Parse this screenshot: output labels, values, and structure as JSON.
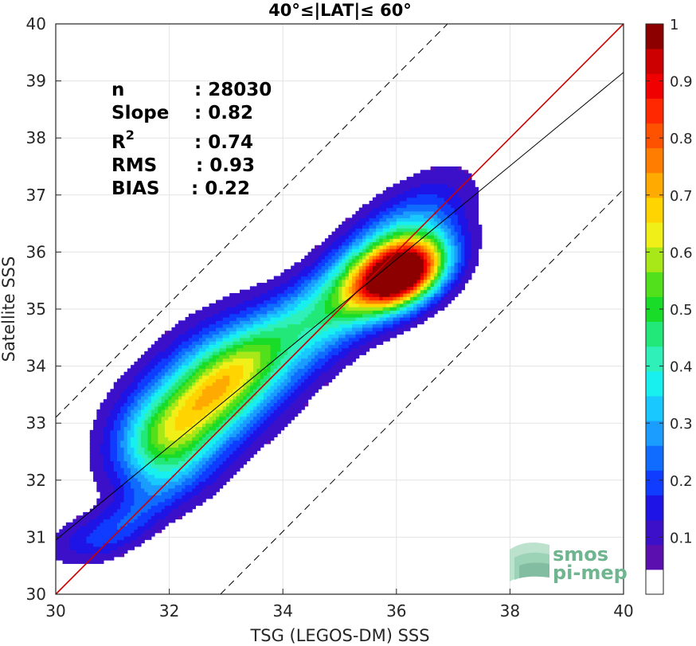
{
  "chart_data": {
    "type": "heatmap",
    "title": "40°≤|LAT|≤ 60°",
    "xlabel": "TSG (LEGOS-DM) SSS",
    "ylabel": "Satellite SSS",
    "xlim": [
      30,
      40
    ],
    "ylim": [
      30,
      40
    ],
    "x_ticks": [
      "30",
      "32",
      "34",
      "36",
      "38",
      "40"
    ],
    "y_ticks": [
      "30",
      "31",
      "32",
      "33",
      "34",
      "35",
      "36",
      "37",
      "38",
      "39",
      "40"
    ],
    "grid": true,
    "colorbar": {
      "min": 0,
      "max": 1,
      "ticks": [
        "0.1",
        "0.2",
        "0.3",
        "0.4",
        "0.5",
        "0.6",
        "0.7",
        "0.8",
        "0.9",
        "1"
      ],
      "levels": [
        "#ffffff",
        "#5b0fae",
        "#3b10c8",
        "#1f14e6",
        "#0f3cff",
        "#0f6cff",
        "#1b9cff",
        "#18c8ff",
        "#18f0f0",
        "#2ff0b8",
        "#22e87a",
        "#18dc28",
        "#52e01c",
        "#a8e818",
        "#f0f018",
        "#ffd400",
        "#ffaa00",
        "#ff7d00",
        "#ff5200",
        "#ff2800",
        "#f00000",
        "#cc0000",
        "#8c0000"
      ]
    },
    "reference_lines": [
      {
        "name": "1:1",
        "color": "#cc0000",
        "slope": 1,
        "intercept": 0,
        "style": "solid"
      },
      {
        "name": "regression",
        "color": "#000000",
        "slope": 0.82,
        "intercept": 6.35,
        "style": "solid"
      },
      {
        "name": "upper bound",
        "color": "#000000",
        "slope": 1,
        "intercept": 3.1,
        "style": "dashed"
      },
      {
        "name": "lower bound",
        "color": "#000000",
        "slope": 1,
        "intercept": -2.9,
        "style": "dashed"
      }
    ],
    "density_blobs": [
      {
        "x": 32.8,
        "y": 33.6,
        "sx": 0.75,
        "sy": 0.75,
        "amp": 0.55,
        "rot": 0.7
      },
      {
        "x": 31.9,
        "y": 32.6,
        "sx": 0.45,
        "sy": 0.75,
        "amp": 0.28,
        "rot": 0.7
      },
      {
        "x": 31.4,
        "y": 31.4,
        "sx": 0.5,
        "sy": 0.35,
        "amp": 0.12,
        "rot": 0.7
      },
      {
        "x": 30.6,
        "y": 31.0,
        "sx": 0.45,
        "sy": 0.35,
        "amp": 0.1,
        "rot": 0.3
      },
      {
        "x": 33.8,
        "y": 34.5,
        "sx": 1.2,
        "sy": 0.45,
        "amp": 0.18,
        "rot": 0.75
      },
      {
        "x": 35.0,
        "y": 35.0,
        "sx": 0.8,
        "sy": 0.5,
        "amp": 0.22,
        "rot": 0.8
      },
      {
        "x": 36.1,
        "y": 35.6,
        "sx": 0.42,
        "sy": 0.45,
        "amp": 1.0,
        "rot": 0.5
      },
      {
        "x": 35.9,
        "y": 35.9,
        "sx": 0.75,
        "sy": 0.6,
        "amp": 0.3,
        "rot": 0.8
      }
    ]
  },
  "stats": {
    "n_label": "n",
    "n_value": ": 28030",
    "slope_label": "Slope",
    "slope_value": ": 0.82",
    "r2_label": "R",
    "r2_sup": "2",
    "r2_value": ": 0.74",
    "rms_label": "RMS",
    "rms_value": ": 0.93",
    "bias_label": "BIAS",
    "bias_value": ": 0.22"
  },
  "logo": {
    "line1": "smos",
    "line2": "pi-mep",
    "color": "#6fb58f"
  }
}
